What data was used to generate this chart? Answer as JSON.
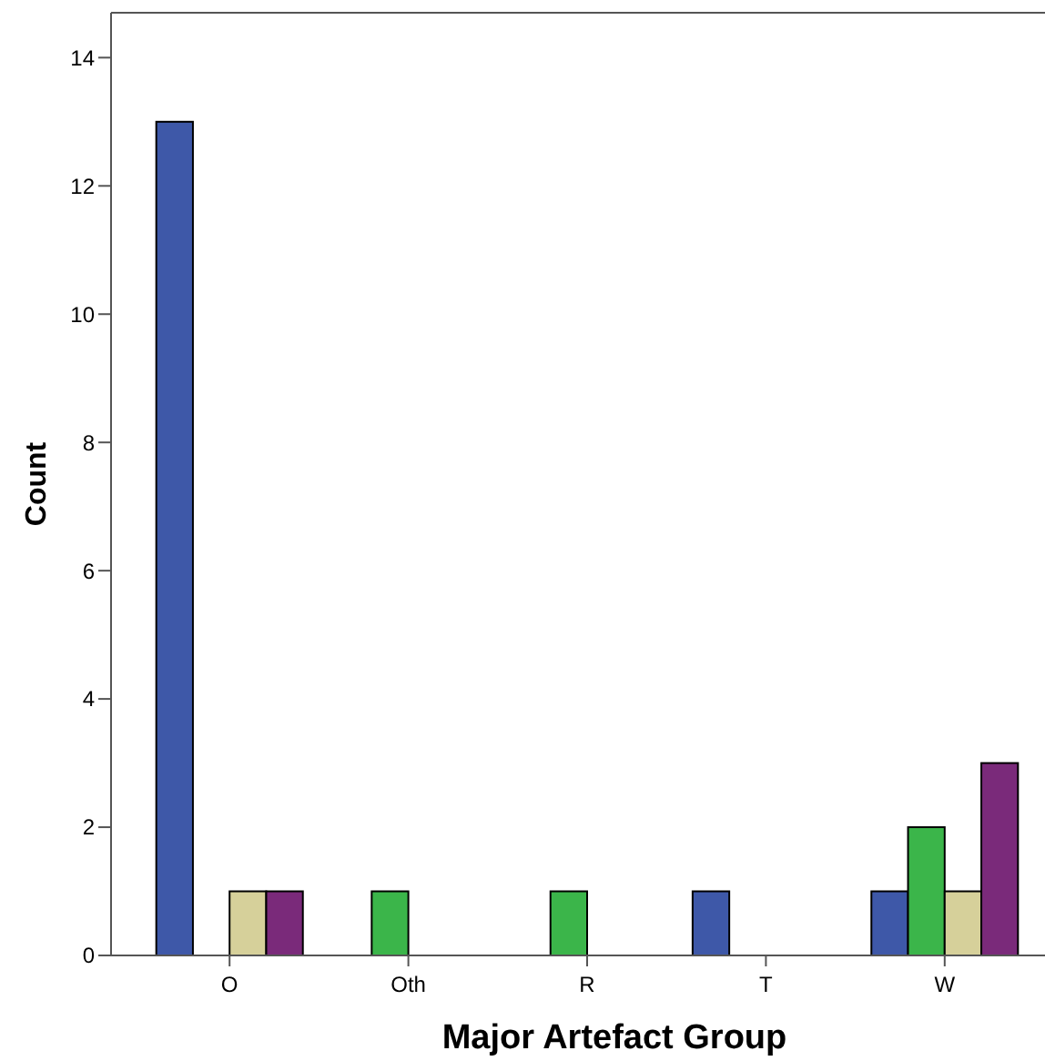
{
  "chart_data": {
    "type": "bar",
    "xlabel": "Major Artefact Group",
    "ylabel": "Count",
    "categories": [
      "O",
      "Oth",
      "R",
      "T",
      "W"
    ],
    "series": [
      {
        "color": "#3e58a8",
        "values": [
          13,
          null,
          null,
          1,
          1
        ]
      },
      {
        "color": "#3bb54a",
        "values": [
          null,
          1,
          1,
          null,
          2
        ]
      },
      {
        "color": "#d6d09a",
        "values": [
          1,
          null,
          null,
          null,
          1
        ]
      },
      {
        "color": "#7a2a7a",
        "values": [
          1,
          null,
          null,
          null,
          3
        ]
      }
    ],
    "ylim": [
      0,
      14.7
    ],
    "yticks": [
      0,
      2,
      4,
      6,
      8,
      10,
      12,
      14
    ],
    "grid": false
  }
}
